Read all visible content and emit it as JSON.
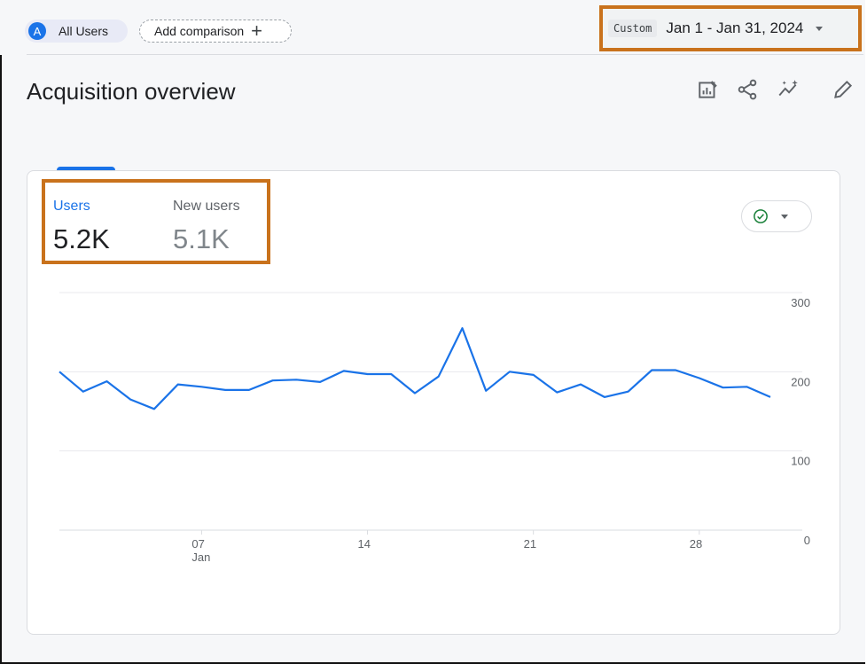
{
  "segment": {
    "avatar_letter": "A",
    "label": "All Users"
  },
  "comparison": {
    "label": "Add comparison",
    "icon": "plus-icon"
  },
  "date_picker": {
    "tag": "Custom",
    "range": "Jan 1 - Jan 31, 2024",
    "icon": "caret-down-icon"
  },
  "page": {
    "title": "Acquisition overview"
  },
  "toolbar": {
    "icons": [
      "customize-report-icon",
      "share-icon",
      "insights-icon",
      "edit-icon"
    ]
  },
  "metrics": [
    {
      "label": "Users",
      "value": "5.2K",
      "color": "#1a73e8"
    },
    {
      "label": "New users",
      "value": "5.1K",
      "color": "#5f6368"
    }
  ],
  "compare_button": {
    "icon": "check-circle-icon",
    "color": "#188038"
  },
  "chart_data": {
    "type": "line",
    "x": [
      1,
      2,
      3,
      4,
      5,
      6,
      7,
      8,
      9,
      10,
      11,
      12,
      13,
      14,
      15,
      16,
      17,
      18,
      19,
      20,
      21,
      22,
      23,
      24,
      25,
      26,
      27,
      28,
      29,
      30,
      31
    ],
    "series": [
      {
        "values": [
          200,
          175,
          188,
          165,
          153,
          184,
          181,
          177,
          177,
          189,
          190,
          187,
          201,
          197,
          197,
          173,
          194,
          255,
          176,
          200,
          196,
          174,
          184,
          168,
          175,
          202,
          202,
          192,
          180,
          181,
          168
        ],
        "color": "#1a73e8"
      }
    ],
    "ylim": [
      0,
      300
    ],
    "yticks": [
      "0",
      "100",
      "200",
      "300"
    ],
    "xticks": [
      {
        "x": 7,
        "label": "07",
        "sublabel": "Jan"
      },
      {
        "x": 14,
        "label": "14",
        "sublabel": ""
      },
      {
        "x": 21,
        "label": "21",
        "sublabel": ""
      },
      {
        "x": 28,
        "label": "28",
        "sublabel": ""
      }
    ],
    "grid": true
  }
}
